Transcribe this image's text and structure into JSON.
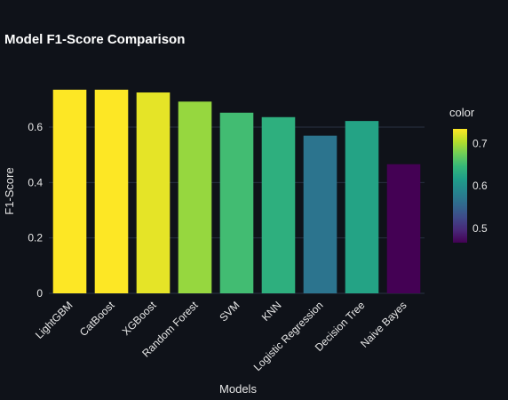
{
  "chart_data": {
    "type": "bar",
    "title": "Model F1-Score Comparison",
    "xlabel": "Models",
    "ylabel": "F1-Score",
    "categories": [
      "LightGBM",
      "CatBoost",
      "XGBoost",
      "Random Forest",
      "SVM",
      "KNN",
      "Logistic Regression",
      "Decision Tree",
      "Naive Bayes"
    ],
    "values": [
      0.735,
      0.735,
      0.725,
      0.692,
      0.652,
      0.636,
      0.569,
      0.622,
      0.466
    ],
    "ylim": [
      0,
      0.77
    ],
    "yticks": [
      0,
      0.2,
      0.4,
      0.6
    ],
    "ytick_labels": [
      "0",
      "0.2",
      "0.4",
      "0.6"
    ],
    "grid": true,
    "colorscale": "viridis",
    "colorbar": {
      "title": "color",
      "range": [
        0.466,
        0.735
      ],
      "ticks": [
        0.5,
        0.6,
        0.7
      ],
      "tick_labels": [
        "0.5",
        "0.6",
        "0.7"
      ]
    }
  },
  "colors": {
    "background": "#0f1219",
    "grid": "#283142",
    "text": "#e8e8e8"
  }
}
